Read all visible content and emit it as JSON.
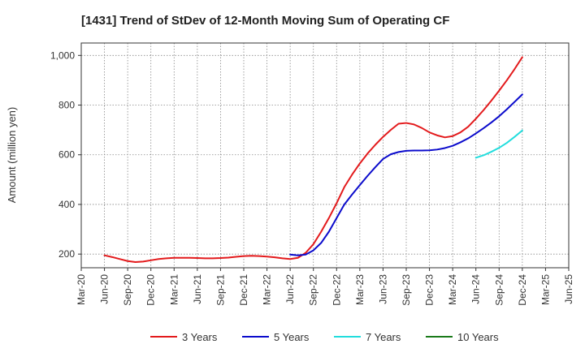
{
  "chart_data": {
    "type": "line",
    "title": "[1431]  Trend of StDev of 12-Month Moving Sum of Operating CF",
    "xlabel": "",
    "ylabel": "Amount (million yen)",
    "x_tick_labels": [
      "Mar-20",
      "Jun-20",
      "Sep-20",
      "Dec-20",
      "Mar-21",
      "Jun-21",
      "Sep-21",
      "Dec-21",
      "Mar-22",
      "Jun-22",
      "Sep-22",
      "Dec-22",
      "Mar-23",
      "Jun-23",
      "Sep-23",
      "Dec-23",
      "Mar-24",
      "Jun-24",
      "Sep-24",
      "Dec-24",
      "Mar-25",
      "Jun-25"
    ],
    "y_ticks": [
      200,
      400,
      600,
      800,
      1000
    ],
    "y_tick_labels": [
      "200",
      "400",
      "600",
      "800",
      "1,000"
    ],
    "ylim": [
      145,
      1050
    ],
    "grid": true,
    "legend_position": "bottom",
    "series": [
      {
        "name": "3 Years",
        "color": "#e31a1c",
        "x": [
          "Jun-20",
          "Jul-20",
          "Aug-20",
          "Sep-20",
          "Oct-20",
          "Nov-20",
          "Dec-20",
          "Jan-21",
          "Feb-21",
          "Mar-21",
          "Apr-21",
          "May-21",
          "Jun-21",
          "Jul-21",
          "Aug-21",
          "Sep-21",
          "Oct-21",
          "Nov-21",
          "Dec-21",
          "Jan-22",
          "Feb-22",
          "Mar-22",
          "Apr-22",
          "May-22",
          "Jun-22",
          "Jul-22",
          "Aug-22",
          "Sep-22",
          "Oct-22",
          "Nov-22",
          "Dec-22",
          "Jan-23",
          "Feb-23",
          "Mar-23",
          "Apr-23",
          "May-23",
          "Jun-23",
          "Jul-23",
          "Aug-23",
          "Sep-23",
          "Oct-23",
          "Nov-23",
          "Dec-23",
          "Jan-24",
          "Feb-24",
          "Mar-24",
          "Apr-24",
          "May-24",
          "Jun-24",
          "Jul-24",
          "Aug-24",
          "Sep-24",
          "Oct-24",
          "Nov-24",
          "Dec-24"
        ],
        "values": [
          195,
          188,
          180,
          172,
          168,
          170,
          175,
          180,
          183,
          185,
          185,
          185,
          184,
          183,
          183,
          184,
          186,
          189,
          192,
          193,
          192,
          190,
          187,
          183,
          180,
          185,
          205,
          240,
          290,
          345,
          405,
          470,
          520,
          565,
          605,
          640,
          672,
          700,
          725,
          728,
          722,
          708,
          690,
          678,
          670,
          675,
          690,
          713,
          745,
          780,
          818,
          858,
          900,
          945,
          993
        ]
      },
      {
        "name": "5 Years",
        "color": "#0b0bcc",
        "x": [
          "Jun-22",
          "Jul-22",
          "Aug-22",
          "Sep-22",
          "Oct-22",
          "Nov-22",
          "Dec-22",
          "Jan-23",
          "Feb-23",
          "Mar-23",
          "Apr-23",
          "May-23",
          "Jun-23",
          "Jul-23",
          "Aug-23",
          "Sep-23",
          "Oct-23",
          "Nov-23",
          "Dec-23",
          "Jan-24",
          "Feb-24",
          "Mar-24",
          "Apr-24",
          "May-24",
          "Jun-24",
          "Jul-24",
          "Aug-24",
          "Sep-24",
          "Oct-24",
          "Nov-24",
          "Dec-24"
        ],
        "values": [
          198,
          195,
          198,
          215,
          245,
          290,
          345,
          400,
          440,
          478,
          515,
          550,
          583,
          602,
          611,
          616,
          617,
          617,
          618,
          621,
          627,
          636,
          650,
          666,
          686,
          707,
          730,
          755,
          783,
          813,
          843
        ]
      },
      {
        "name": "7 Years",
        "color": "#22dddd",
        "x": [
          "Jun-24",
          "Jul-24",
          "Aug-24",
          "Sep-24",
          "Oct-24",
          "Nov-24",
          "Dec-24"
        ],
        "values": [
          588,
          598,
          612,
          628,
          648,
          672,
          698
        ]
      },
      {
        "name": "10 Years",
        "color": "#1a7a1a",
        "x": [],
        "values": []
      }
    ]
  }
}
